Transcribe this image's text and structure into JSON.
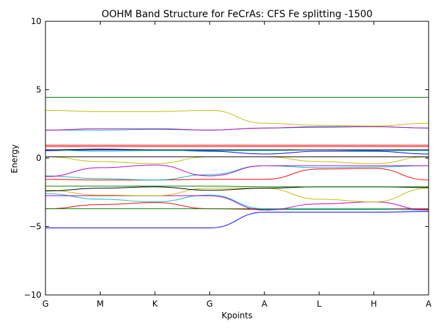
{
  "chart_data": {
    "type": "line",
    "title": "OOHM Band Structure for FeCrAs: CFS Fe splitting -1500",
    "xlabel": "Kpoints",
    "ylabel": "Energy",
    "x_ticks": [
      {
        "x": 0,
        "label": "G"
      },
      {
        "x": 1,
        "label": "M"
      },
      {
        "x": 2,
        "label": "K"
      },
      {
        "x": 3,
        "label": "G"
      },
      {
        "x": 4,
        "label": "A"
      },
      {
        "x": 5,
        "label": "L"
      },
      {
        "x": 6,
        "label": "H"
      },
      {
        "x": 7,
        "label": "A"
      }
    ],
    "y_ticks": [
      -10,
      -5,
      0,
      5,
      10
    ],
    "xlim": [
      0,
      7
    ],
    "ylim": [
      -10,
      10
    ],
    "grid": false,
    "series": [
      {
        "color": "#0000ff",
        "values": [
          -5.1,
          -5.1,
          -5.1,
          -5.1,
          -3.95,
          -3.95,
          -3.95,
          -3.9
        ]
      },
      {
        "color": "#ff0000",
        "values": [
          -3.7,
          -3.4,
          -3.25,
          -3.7,
          -3.7,
          -3.7,
          -3.7,
          -3.7
        ]
      },
      {
        "color": "#008000",
        "values": [
          -3.7,
          -3.7,
          -3.7,
          -3.7,
          -3.75,
          -3.75,
          -3.75,
          -3.75
        ]
      },
      {
        "color": "#00bfbf",
        "values": [
          -2.6,
          -3.0,
          -3.2,
          -2.7,
          -3.7,
          -3.7,
          -3.7,
          -3.8
        ]
      },
      {
        "color": "#bf00bf",
        "values": [
          -2.75,
          -2.75,
          -2.75,
          -2.75,
          -3.8,
          -3.35,
          -3.2,
          -3.8
        ]
      },
      {
        "color": "#bfbf00",
        "values": [
          -2.35,
          -2.7,
          -2.75,
          -2.2,
          -2.2,
          -3.0,
          -3.2,
          -2.2
        ]
      },
      {
        "color": "#000000",
        "values": [
          -2.4,
          -2.2,
          -2.1,
          -2.35,
          -2.2,
          -2.1,
          -2.1,
          -2.15
        ]
      },
      {
        "color": "#008000",
        "values": [
          -2.05,
          -2.05,
          -2.05,
          -2.05,
          -2.1,
          -2.1,
          -2.1,
          -2.1
        ]
      },
      {
        "color": "#ff0000",
        "values": [
          -1.55,
          -1.6,
          -1.6,
          -1.55,
          -1.55,
          -0.8,
          -0.75,
          -1.6
        ]
      },
      {
        "color": "#00bfbf",
        "values": [
          -1.3,
          -1.5,
          -1.6,
          -1.2,
          -0.55,
          -0.7,
          -0.65,
          -0.55
        ]
      },
      {
        "color": "#bf00bf",
        "values": [
          -1.35,
          -0.7,
          -0.5,
          -1.3,
          -0.55,
          -0.55,
          -0.55,
          -0.55
        ]
      },
      {
        "color": "#bfbf00",
        "values": [
          0.1,
          -0.25,
          -0.4,
          0.1,
          0.1,
          -0.25,
          -0.4,
          0.1
        ]
      },
      {
        "color": "#000000",
        "values": [
          0.1,
          0.1,
          0.1,
          0.1,
          0.1,
          0.1,
          0.1,
          0.1
        ]
      },
      {
        "color": "#0000ff",
        "values": [
          0.55,
          0.6,
          0.6,
          0.5,
          0.3,
          0.5,
          0.5,
          0.3
        ]
      },
      {
        "color": "#00bfbf",
        "values": [
          0.6,
          0.5,
          0.55,
          0.55,
          0.55,
          0.6,
          0.55,
          0.55
        ]
      },
      {
        "color": "#000000",
        "values": [
          0.6,
          0.65,
          0.6,
          0.6,
          0.6,
          0.6,
          0.6,
          0.6
        ]
      },
      {
        "color": "#ff0000",
        "values": [
          0.85,
          0.85,
          0.85,
          0.85,
          0.85,
          0.85,
          0.85,
          0.85
        ]
      },
      {
        "color": "#ff0000",
        "values": [
          0.95,
          0.95,
          0.95,
          0.95,
          0.95,
          0.95,
          0.95,
          0.95
        ]
      },
      {
        "color": "#00bfbf",
        "values": [
          2.05,
          2.05,
          2.1,
          2.05,
          2.2,
          2.25,
          2.3,
          2.2
        ]
      },
      {
        "color": "#bf00bf",
        "values": [
          2.05,
          2.15,
          2.15,
          2.05,
          2.2,
          2.3,
          2.3,
          2.2
        ]
      },
      {
        "color": "#bfbf00",
        "values": [
          3.5,
          3.4,
          3.4,
          3.5,
          2.55,
          2.4,
          2.35,
          2.55
        ]
      },
      {
        "color": "#008000",
        "values": [
          4.45,
          4.45,
          4.45,
          4.45,
          4.45,
          4.45,
          4.45,
          4.45
        ]
      }
    ]
  }
}
